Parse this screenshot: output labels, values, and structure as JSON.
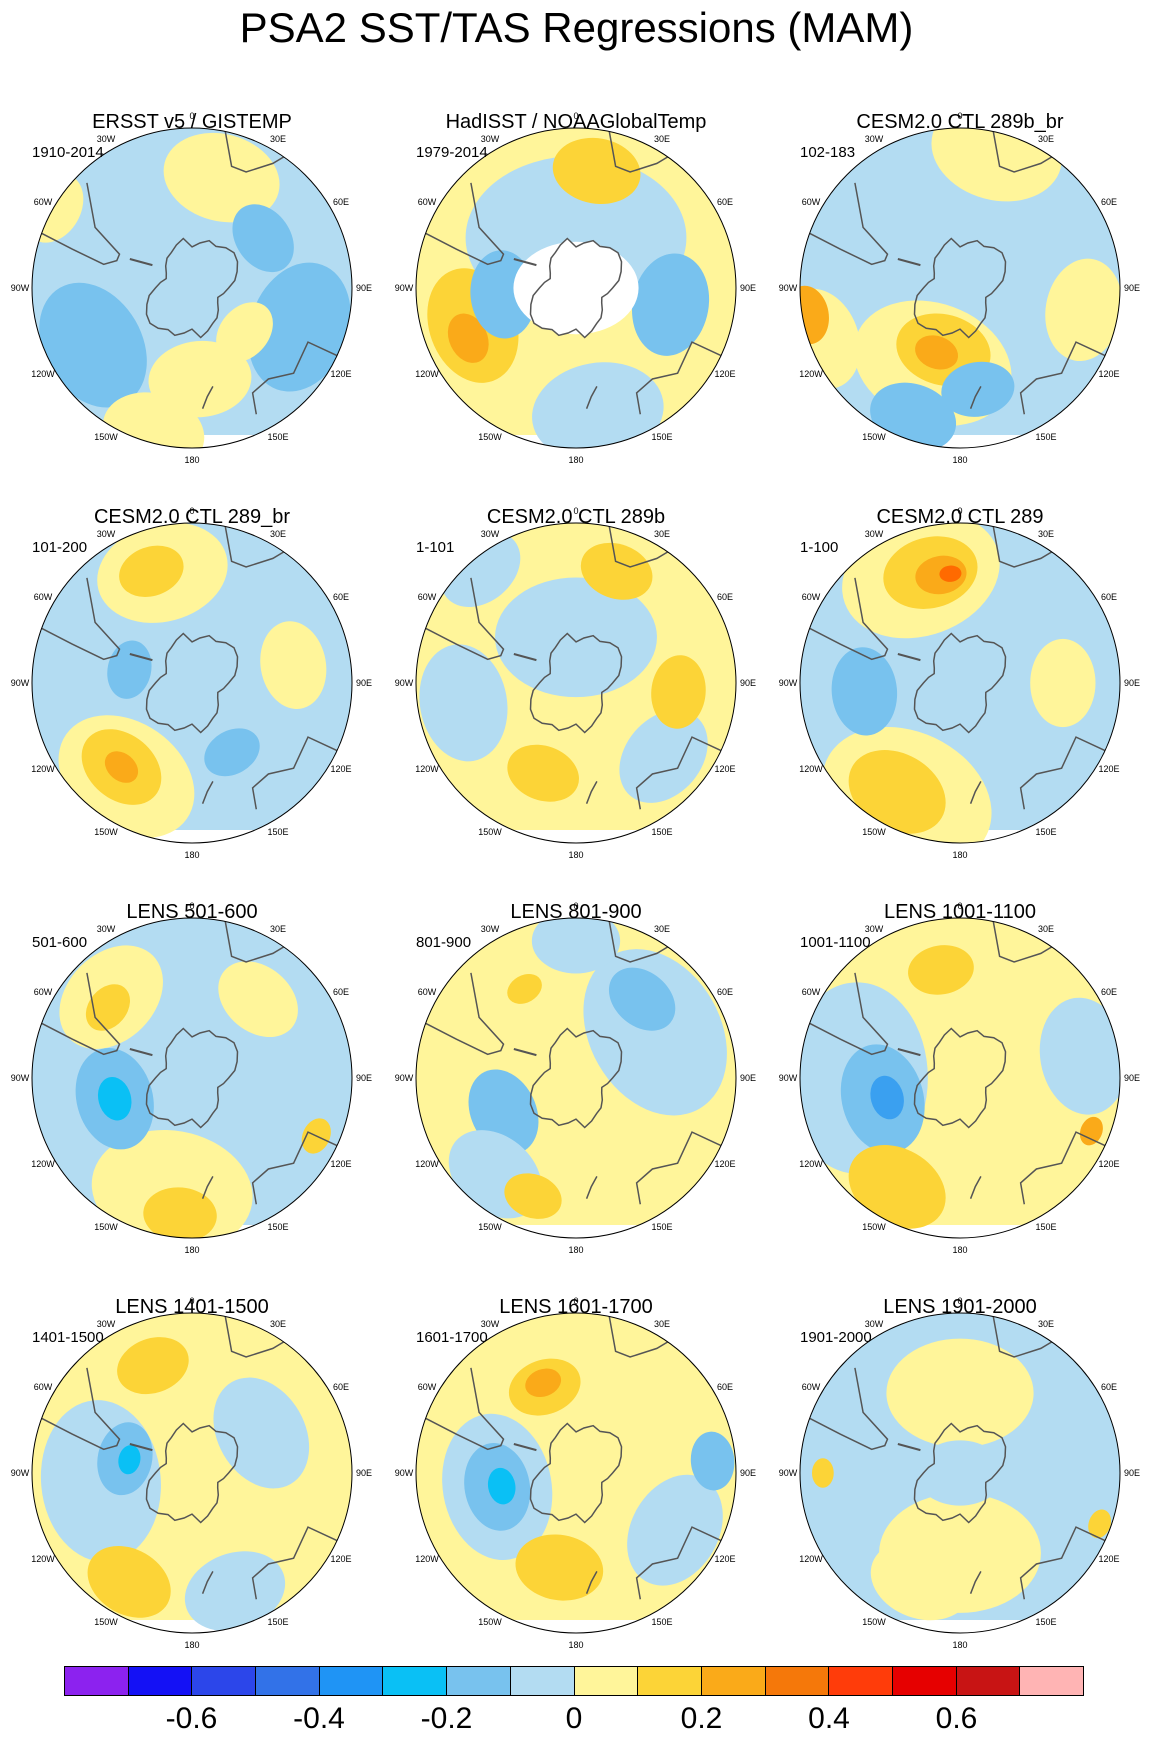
{
  "title": "PSA2 SST/TAS Regressions (MAM)",
  "lon_labels": [
    "0",
    "30E",
    "60E",
    "90E",
    "120E",
    "150E",
    "180",
    "150W",
    "120W",
    "90W",
    "60W",
    "30W"
  ],
  "colors": {
    "land": "#ffffff",
    "coast": "#555555",
    "outline": "#000000"
  },
  "panels": [
    {
      "title": "ERSST v5 / GISTEMP",
      "years": "1910-2014",
      "base": "#b3dcf2",
      "blobs": [
        {
          "c": "#fff59a",
          "lon": 15,
          "lat": -40,
          "r": 0.16
        },
        {
          "c": "#78c2ee",
          "lon": 55,
          "lat": -52,
          "r": 0.1
        },
        {
          "c": "#fff59a",
          "lon": 175,
          "lat": -50,
          "r": 0.14
        },
        {
          "c": "#78c2ee",
          "lon": -120,
          "lat": -40,
          "r": 0.18
        },
        {
          "c": "#78c2ee",
          "lon": 110,
          "lat": -40,
          "r": 0.18
        },
        {
          "c": "#fff59a",
          "lon": -165,
          "lat": -25,
          "r": 0.14
        },
        {
          "c": "#fff59a",
          "lon": -60,
          "lat": -20,
          "r": 0.1
        },
        {
          "c": "#fff59a",
          "lon": 130,
          "lat": -60,
          "r": 0.09
        }
      ]
    },
    {
      "title": "HadISST / NOAAGlobalTemp",
      "years": "1979-2014",
      "base": "#fff59a",
      "blobs": [
        {
          "c": "#b3dcf2",
          "lon": 0,
          "lat": -68,
          "r": 0.3
        },
        {
          "c": "#fcd437",
          "lon": 10,
          "lat": -38,
          "r": 0.12
        },
        {
          "c": "#fcd437",
          "lon": -110,
          "lat": -42,
          "r": 0.16
        },
        {
          "c": "#faaa19",
          "lon": -115,
          "lat": -38,
          "r": 0.07
        },
        {
          "c": "#78c2ee",
          "lon": -95,
          "lat": -58,
          "r": 0.12
        },
        {
          "c": "#78c2ee",
          "lon": 100,
          "lat": -48,
          "r": 0.14
        },
        {
          "c": "#b3dcf2",
          "lon": 170,
          "lat": -35,
          "r": 0.18
        },
        {
          "c": "#ffffff",
          "lon": 0,
          "lat": -90,
          "r": 0.17
        }
      ]
    },
    {
      "title": "CESM2.0 CTL 289b_br",
      "years": "102-183",
      "base": "#b3dcf2",
      "blobs": [
        {
          "c": "#fff59a",
          "lon": -160,
          "lat": -55,
          "r": 0.22
        },
        {
          "c": "#fcd437",
          "lon": -165,
          "lat": -62,
          "r": 0.13
        },
        {
          "c": "#faaa19",
          "lon": -160,
          "lat": -60,
          "r": 0.06
        },
        {
          "c": "#fff59a",
          "lon": -110,
          "lat": -25,
          "r": 0.14
        },
        {
          "c": "#faaa19",
          "lon": -100,
          "lat": -22,
          "r": 0.08
        },
        {
          "c": "#78c2ee",
          "lon": -160,
          "lat": -30,
          "r": 0.12
        },
        {
          "c": "#78c2ee",
          "lon": 170,
          "lat": -45,
          "r": 0.1
        },
        {
          "c": "#fff59a",
          "lon": 15,
          "lat": -28,
          "r": 0.18
        },
        {
          "c": "#fff59a",
          "lon": 100,
          "lat": -35,
          "r": 0.14
        }
      ]
    },
    {
      "title": "CESM2.0 CTL 289_br",
      "years": "101-200",
      "base": "#b3dcf2",
      "blobs": [
        {
          "c": "#fff59a",
          "lon": -15,
          "lat": -40,
          "r": 0.18
        },
        {
          "c": "#fcd437",
          "lon": -20,
          "lat": -38,
          "r": 0.09
        },
        {
          "c": "#fff59a",
          "lon": -145,
          "lat": -40,
          "r": 0.2
        },
        {
          "c": "#fcd437",
          "lon": -140,
          "lat": -42,
          "r": 0.12
        },
        {
          "c": "#faaa19",
          "lon": -140,
          "lat": -42,
          "r": 0.05
        },
        {
          "c": "#78c2ee",
          "lon": -78,
          "lat": -62,
          "r": 0.08
        },
        {
          "c": "#fff59a",
          "lon": 80,
          "lat": -45,
          "r": 0.12
        },
        {
          "c": "#78c2ee",
          "lon": 150,
          "lat": -55,
          "r": 0.08
        }
      ]
    },
    {
      "title": "CESM2.0 CTL 289b",
      "years": "1-101",
      "base": "#fff59a",
      "blobs": [
        {
          "c": "#b3dcf2",
          "lon": 0,
          "lat": -70,
          "r": 0.22
        },
        {
          "c": "#fcd437",
          "lon": 20,
          "lat": -38,
          "r": 0.1
        },
        {
          "c": "#b3dcf2",
          "lon": -100,
          "lat": -40,
          "r": 0.16
        },
        {
          "c": "#b3dcf2",
          "lon": 130,
          "lat": -40,
          "r": 0.14
        },
        {
          "c": "#fcd437",
          "lon": 95,
          "lat": -45,
          "r": 0.1
        },
        {
          "c": "#fcd437",
          "lon": -160,
          "lat": -48,
          "r": 0.1
        },
        {
          "c": "#b3dcf2",
          "lon": -40,
          "lat": -25,
          "r": 0.12
        }
      ]
    },
    {
      "title": "CESM2.0 CTL 289",
      "years": "1-100",
      "base": "#b3dcf2",
      "blobs": [
        {
          "c": "#fff59a",
          "lon": -20,
          "lat": -40,
          "r": 0.22
        },
        {
          "c": "#fcd437",
          "lon": -15,
          "lat": -40,
          "r": 0.13
        },
        {
          "c": "#faaa19",
          "lon": -10,
          "lat": -42,
          "r": 0.07
        },
        {
          "c": "#ff6a00",
          "lon": -5,
          "lat": -42,
          "r": 0.03
        },
        {
          "c": "#fff59a",
          "lon": -155,
          "lat": -35,
          "r": 0.24
        },
        {
          "c": "#fcd437",
          "lon": -150,
          "lat": -35,
          "r": 0.14
        },
        {
          "c": "#78c2ee",
          "lon": -95,
          "lat": -48,
          "r": 0.12
        },
        {
          "c": "#fff59a",
          "lon": 90,
          "lat": -45,
          "r": 0.12
        }
      ]
    },
    {
      "title": "LENS 501-600",
      "years": "501-600",
      "base": "#b3dcf2",
      "blobs": [
        {
          "c": "#fff59a",
          "lon": -45,
          "lat": -40,
          "r": 0.16
        },
        {
          "c": "#fcd437",
          "lon": -50,
          "lat": -42,
          "r": 0.07
        },
        {
          "c": "#fff59a",
          "lon": -170,
          "lat": -40,
          "r": 0.22
        },
        {
          "c": "#fcd437",
          "lon": -175,
          "lat": -30,
          "r": 0.1
        },
        {
          "c": "#78c2ee",
          "lon": -105,
          "lat": -55,
          "r": 0.14
        },
        {
          "c": "#0ac0f5",
          "lon": -105,
          "lat": -55,
          "r": 0.06
        },
        {
          "c": "#fff59a",
          "lon": 40,
          "lat": -45,
          "r": 0.12
        },
        {
          "c": "#fcd437",
          "lon": 115,
          "lat": -30,
          "r": 0.05
        }
      ]
    },
    {
      "title": "LENS 801-900",
      "years": "801-900",
      "base": "#fff59a",
      "blobs": [
        {
          "c": "#b3dcf2",
          "lon": 60,
          "lat": -50,
          "r": 0.24
        },
        {
          "c": "#78c2ee",
          "lon": 40,
          "lat": -45,
          "r": 0.1
        },
        {
          "c": "#78c2ee",
          "lon": -115,
          "lat": -55,
          "r": 0.12
        },
        {
          "c": "#b3dcf2",
          "lon": -140,
          "lat": -35,
          "r": 0.14
        },
        {
          "c": "#fcd437",
          "lon": -160,
          "lat": -35,
          "r": 0.08
        },
        {
          "c": "#b3dcf2",
          "lon": 0,
          "lat": -30,
          "r": 0.12
        },
        {
          "c": "#fcd437",
          "lon": -30,
          "lat": -45,
          "r": 0.05
        }
      ]
    },
    {
      "title": "LENS 1001-1100",
      "years": "1001-1100",
      "base": "#fff59a",
      "blobs": [
        {
          "c": "#b3dcf2",
          "lon": -90,
          "lat": -45,
          "r": 0.26
        },
        {
          "c": "#78c2ee",
          "lon": -105,
          "lat": -55,
          "r": 0.15
        },
        {
          "c": "#3aa0f0",
          "lon": -105,
          "lat": -57,
          "r": 0.06
        },
        {
          "c": "#fcd437",
          "lon": -10,
          "lat": -42,
          "r": 0.09
        },
        {
          "c": "#fcd437",
          "lon": -150,
          "lat": -35,
          "r": 0.14
        },
        {
          "c": "#b3dcf2",
          "lon": 80,
          "lat": -35,
          "r": 0.16
        },
        {
          "c": "#faaa19",
          "lon": 112,
          "lat": -28,
          "r": 0.04
        }
      ]
    },
    {
      "title": "LENS 1401-1500",
      "years": "1401-1500",
      "base": "#fff59a",
      "blobs": [
        {
          "c": "#b3dcf2",
          "lon": -95,
          "lat": -50,
          "r": 0.22
        },
        {
          "c": "#78c2ee",
          "lon": -78,
          "lat": -60,
          "r": 0.1
        },
        {
          "c": "#0ac0f5",
          "lon": -78,
          "lat": -62,
          "r": 0.04
        },
        {
          "c": "#fcd437",
          "lon": -20,
          "lat": -40,
          "r": 0.1
        },
        {
          "c": "#fcd437",
          "lon": -150,
          "lat": -35,
          "r": 0.12
        },
        {
          "c": "#b3dcf2",
          "lon": 60,
          "lat": -55,
          "r": 0.16
        },
        {
          "c": "#b3dcf2",
          "lon": 160,
          "lat": -35,
          "r": 0.14
        }
      ]
    },
    {
      "title": "LENS 1601-1700",
      "years": "1601-1700",
      "base": "#fff59a",
      "blobs": [
        {
          "c": "#b3dcf2",
          "lon": -100,
          "lat": -55,
          "r": 0.2
        },
        {
          "c": "#78c2ee",
          "lon": -100,
          "lat": -55,
          "r": 0.12
        },
        {
          "c": "#0ac0f5",
          "lon": -100,
          "lat": -57,
          "r": 0.05
        },
        {
          "c": "#fcd437",
          "lon": -20,
          "lat": -50,
          "r": 0.1
        },
        {
          "c": "#faaa19",
          "lon": -20,
          "lat": -48,
          "r": 0.05
        },
        {
          "c": "#fcd437",
          "lon": -170,
          "lat": -48,
          "r": 0.12
        },
        {
          "c": "#b3dcf2",
          "lon": 120,
          "lat": -40,
          "r": 0.16
        },
        {
          "c": "#78c2ee",
          "lon": 85,
          "lat": -30,
          "r": 0.08
        }
      ]
    },
    {
      "title": "LENS 1901-2000",
      "years": "1901-2000",
      "base": "#b3dcf2",
      "blobs": [
        {
          "c": "#fff59a",
          "lon": 0,
          "lat": -55,
          "r": 0.2
        },
        {
          "c": "#fff59a",
          "lon": 180,
          "lat": -55,
          "r": 0.22
        },
        {
          "c": "#fff59a",
          "lon": -160,
          "lat": -40,
          "r": 0.14
        },
        {
          "c": "#fcd437",
          "lon": -90,
          "lat": -30,
          "r": 0.04
        },
        {
          "c": "#fcd437",
          "lon": 110,
          "lat": -25,
          "r": 0.04
        },
        {
          "c": "#b3dcf2",
          "lon": 0,
          "lat": -90,
          "r": 0.12
        }
      ]
    }
  ],
  "colorbar": {
    "colors": [
      "#8c22ef",
      "#1411f5",
      "#2c46ea",
      "#3272e8",
      "#1f94f5",
      "#0ac0f5",
      "#78c2ee",
      "#b3dcf2",
      "#fff59a",
      "#fcd437",
      "#faaa19",
      "#f5780a",
      "#ff3c0a",
      "#e60000",
      "#c81414",
      "#ffb4b4"
    ],
    "labels": [
      "-0.6",
      "-0.4",
      "-0.2",
      "0",
      "0.2",
      "0.4",
      "0.6"
    ]
  }
}
